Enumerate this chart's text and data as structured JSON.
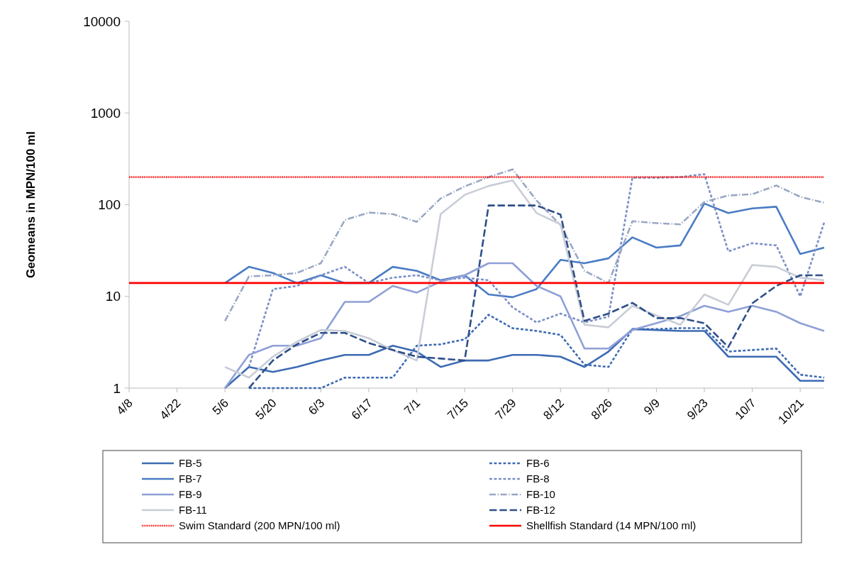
{
  "chart_data": {
    "type": "line",
    "ylabel": "Geomeans in MPN/100 ml",
    "log": true,
    "ylim": [
      1,
      10000
    ],
    "yticks": [
      1,
      10,
      100,
      1000,
      10000
    ],
    "xlim": [
      "--04-08",
      "--10-28"
    ],
    "xticks": [
      {
        "value": "--04-08",
        "label": "4/8"
      },
      {
        "value": "--04-22",
        "label": "4/22"
      },
      {
        "value": "--05-06",
        "label": "5/6"
      },
      {
        "value": "--05-20",
        "label": "5/20"
      },
      {
        "value": "--06-03",
        "label": "6/3"
      },
      {
        "value": "--06-17",
        "label": "6/17"
      },
      {
        "value": "--07-01",
        "label": "7/1"
      },
      {
        "value": "--07-15",
        "label": "7/15"
      },
      {
        "value": "--07-29",
        "label": "7/29"
      },
      {
        "value": "--08-12",
        "label": "8/12"
      },
      {
        "value": "--08-26",
        "label": "8/26"
      },
      {
        "value": "--09-09",
        "label": "9/9"
      },
      {
        "value": "--09-23",
        "label": "9/23"
      },
      {
        "value": "--10-07",
        "label": "10/7"
      },
      {
        "value": "--10-21",
        "label": "10/21"
      }
    ],
    "x": [
      "--05-06",
      "--05-13",
      "--05-20",
      "--05-27",
      "--06-03",
      "--06-10",
      "--06-17",
      "--06-24",
      "--07-01",
      "--07-08",
      "--07-15",
      "--07-22",
      "--07-29",
      "--08-05",
      "--08-12",
      "--08-19",
      "--08-26",
      "--09-02",
      "--09-09",
      "--09-16",
      "--09-23",
      "--09-30",
      "--10-07",
      "--10-14",
      "--10-21",
      "--10-28"
    ],
    "legend": "bottom",
    "grid": false,
    "marker": "none",
    "series": [
      {
        "name": "FB-5",
        "color": "#3d6bb3",
        "line_style": "solid",
        "values": [
          1,
          1.7,
          1.5,
          1.7,
          2.0,
          2.3,
          2.3,
          2.9,
          2.5,
          1.7,
          2.0,
          2.0,
          2.3,
          2.3,
          2.2,
          1.7,
          2.5,
          4.4,
          4.3,
          4.2,
          4.2,
          2.2,
          2.2,
          2.2,
          1.2,
          1.2
        ]
      },
      {
        "name": "FB-6",
        "color": "#3d6bb3",
        "line_style": "dashed",
        "values": [
          null,
          1,
          1,
          1,
          1,
          1.3,
          1.3,
          1.3,
          2.9,
          3.0,
          3.4,
          6.3,
          4.5,
          4.2,
          3.8,
          1.8,
          1.7,
          4.4,
          4.4,
          4.5,
          4.5,
          2.5,
          2.6,
          2.7,
          1.4,
          1.3
        ]
      },
      {
        "name": "FB-7",
        "color": "#4a7cc4",
        "line_style": "solid",
        "values": [
          14,
          21,
          18,
          14,
          17,
          14,
          14,
          21,
          19,
          15,
          17,
          10.5,
          9.8,
          12,
          25,
          23,
          26,
          44,
          34,
          36,
          103,
          81,
          91,
          95,
          29,
          34
        ]
      },
      {
        "name": "FB-8",
        "color": "#7b8fc7",
        "line_style": "dashed",
        "values": [
          null,
          1.7,
          12,
          13,
          17,
          21,
          14,
          16,
          17,
          15,
          16,
          15,
          7.6,
          5.2,
          6.5,
          5.2,
          6.0,
          197,
          197,
          200,
          215,
          31,
          38,
          36,
          10,
          64
        ]
      },
      {
        "name": "FB-9",
        "color": "#8ea0d6",
        "line_style": "solid",
        "values": [
          1,
          2.3,
          2.9,
          2.9,
          3.5,
          8.7,
          8.7,
          13,
          11,
          14.5,
          17,
          23,
          23,
          13,
          10,
          2.7,
          2.7,
          4.3,
          5.1,
          6.1,
          7.9,
          6.8,
          7.9,
          6.8,
          5.1,
          4.2
        ]
      },
      {
        "name": "FB-10",
        "color": "#9aa8c4",
        "line_style": "dashdot",
        "values": [
          5.4,
          16.5,
          17,
          18,
          23,
          68,
          82,
          79,
          65,
          117,
          158,
          200,
          243,
          111,
          60,
          19,
          14,
          66,
          63,
          61,
          107,
          126,
          130,
          162,
          122,
          105
        ]
      },
      {
        "name": "FB-11",
        "color": "#c8cdd6",
        "line_style": "solid",
        "values": [
          1.7,
          1.3,
          2.2,
          3.2,
          4.3,
          4.2,
          3.5,
          2.6,
          2.0,
          79,
          128,
          160,
          184,
          81,
          61,
          4.9,
          4.6,
          7.9,
          6.2,
          4.9,
          10.5,
          8.1,
          22,
          21,
          16,
          15
        ]
      },
      {
        "name": "FB-12",
        "color": "#2f4f8a",
        "line_style": "longdash",
        "values": [
          null,
          1,
          2.0,
          3.0,
          4.0,
          4.0,
          3.1,
          2.6,
          2.2,
          2.1,
          2.0,
          98,
          98,
          98,
          78,
          5.4,
          6.5,
          8.5,
          5.8,
          5.8,
          5.1,
          2.8,
          8.4,
          13,
          17,
          17
        ]
      }
    ],
    "ref_lines": [
      {
        "axis": "y",
        "value": 200,
        "label": "Swim Standard (200 MPN/100 ml)",
        "color": "#ff0000",
        "line_style": "dotted"
      },
      {
        "axis": "y",
        "value": 14,
        "label": "Shellfish Standard (14 MPN/100 ml)",
        "color": "#ff0000",
        "line_style": "solid"
      }
    ]
  }
}
